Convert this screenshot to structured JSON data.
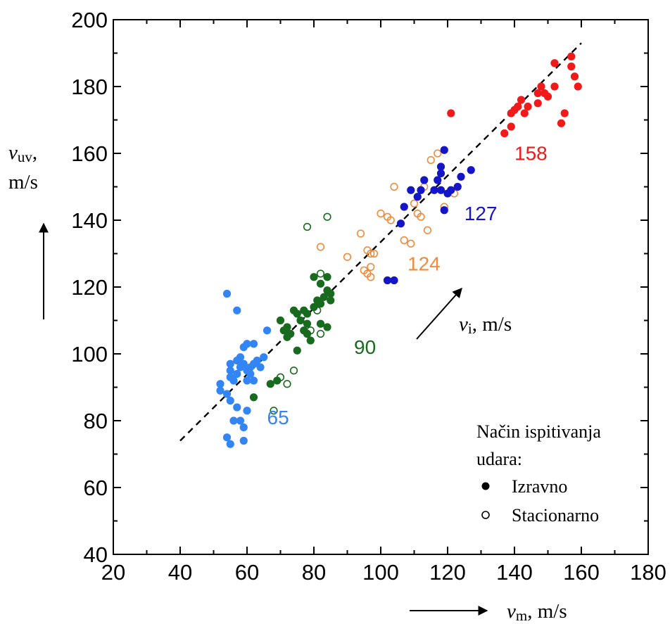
{
  "chart_data": {
    "type": "scatter",
    "xlim": [
      20,
      180
    ],
    "ylim": [
      40,
      200
    ],
    "x_ticks": [
      "20",
      "40",
      "60",
      "80",
      "100",
      "120",
      "140",
      "160",
      "180"
    ],
    "y_ticks": [
      "40",
      "60",
      "80",
      "100",
      "120",
      "140",
      "160",
      "180",
      "200"
    ],
    "xlabel": {
      "symbol": "v",
      "sub": "m",
      "unit": ", m/s"
    },
    "ylabel": {
      "symbol": "v",
      "sub": "uv",
      "line1_tail": ",",
      "line2": "m/s"
    },
    "diag_label": {
      "symbol": "v",
      "sub": "i",
      "unit": ", m/s"
    },
    "trend_line": {
      "from": [
        40,
        74
      ],
      "to": [
        160,
        193
      ],
      "style": "dashed"
    },
    "legend": {
      "title_line1": "Način ispitivanja",
      "title_line2": "udara:",
      "items": [
        {
          "label": "Izravno",
          "marker": "filled"
        },
        {
          "label": "Stacionarno",
          "marker": "open"
        }
      ],
      "placement": "bottom-right"
    },
    "group_labels": [
      {
        "text": "65",
        "color": "#3385f5",
        "x": 66,
        "y": 79
      },
      {
        "text": "90",
        "color": "#186b1e",
        "x": 92,
        "y": 100
      },
      {
        "text": "124",
        "color": "#f08a3c",
        "x": 108,
        "y": 125
      },
      {
        "text": "127",
        "color": "#1515c8",
        "x": 125,
        "y": 140
      },
      {
        "text": "158",
        "color": "#f01a1a",
        "x": 140,
        "y": 158
      }
    ],
    "series": [
      {
        "name": "65",
        "color": "#3385f5",
        "marker": "filled",
        "points": [
          [
            54,
            118
          ],
          [
            57,
            113
          ],
          [
            52,
            91
          ],
          [
            52,
            89
          ],
          [
            54,
            88
          ],
          [
            55,
            97
          ],
          [
            55,
            95
          ],
          [
            55,
            93
          ],
          [
            56,
            92
          ],
          [
            57,
            98
          ],
          [
            58,
            96
          ],
          [
            57,
            94
          ],
          [
            58,
            99
          ],
          [
            59,
            102
          ],
          [
            60,
            103
          ],
          [
            59,
            97
          ],
          [
            60,
            95
          ],
          [
            61,
            96
          ],
          [
            60,
            92
          ],
          [
            61,
            94
          ],
          [
            62,
            97
          ],
          [
            62,
            92
          ],
          [
            63,
            98
          ],
          [
            62,
            103
          ],
          [
            64,
            96
          ],
          [
            65,
            99
          ],
          [
            66,
            107
          ],
          [
            55,
            86
          ],
          [
            57,
            84
          ],
          [
            56,
            80
          ],
          [
            58,
            80
          ],
          [
            60,
            83
          ],
          [
            59,
            78
          ],
          [
            54,
            75
          ],
          [
            55,
            73
          ],
          [
            59,
            74
          ]
        ]
      },
      {
        "name": "90",
        "color": "#186b1e",
        "marker": "filled",
        "points": [
          [
            62,
            87
          ],
          [
            67,
            91
          ],
          [
            69,
            92
          ],
          [
            70,
            110
          ],
          [
            71,
            107
          ],
          [
            72,
            105
          ],
          [
            73,
            106
          ],
          [
            72,
            108
          ],
          [
            74,
            113
          ],
          [
            75,
            112
          ],
          [
            76,
            110
          ],
          [
            77,
            113
          ],
          [
            78,
            109
          ],
          [
            77,
            107
          ],
          [
            78,
            112
          ],
          [
            80,
            114
          ],
          [
            81,
            116
          ],
          [
            82,
            115
          ],
          [
            83,
            117
          ],
          [
            84,
            119
          ],
          [
            85,
            118
          ],
          [
            85,
            116
          ],
          [
            84,
            123
          ],
          [
            80,
            123
          ],
          [
            82,
            121
          ],
          [
            75,
            101
          ],
          [
            79,
            104
          ],
          [
            84,
            108
          ],
          [
            82,
            109
          ],
          [
            78,
            106
          ]
        ]
      },
      {
        "name": "90",
        "color": "#186b1e",
        "marker": "open",
        "points": [
          [
            78,
            138
          ],
          [
            84,
            141
          ],
          [
            82,
            124
          ],
          [
            81,
            113
          ],
          [
            79,
            107
          ],
          [
            78,
            106
          ],
          [
            82,
            106
          ],
          [
            74,
            95
          ],
          [
            70,
            93
          ],
          [
            72,
            91
          ],
          [
            68,
            83
          ]
        ]
      },
      {
        "name": "124",
        "color": "#f08a3c",
        "marker": "open",
        "points": [
          [
            82,
            132
          ],
          [
            90,
            129
          ],
          [
            94,
            136
          ],
          [
            96,
            131
          ],
          [
            97,
            130
          ],
          [
            98,
            130
          ],
          [
            95,
            125
          ],
          [
            96,
            124
          ],
          [
            97,
            126
          ],
          [
            97,
            123
          ],
          [
            100,
            142
          ],
          [
            102,
            141
          ],
          [
            103,
            140
          ],
          [
            104,
            150
          ],
          [
            107,
            134
          ],
          [
            109,
            133
          ],
          [
            110,
            145
          ],
          [
            111,
            142
          ],
          [
            112,
            141
          ],
          [
            113,
            150
          ],
          [
            114,
            137
          ],
          [
            115,
            158
          ],
          [
            117,
            160
          ],
          [
            119,
            144
          ],
          [
            122,
            148
          ]
        ]
      },
      {
        "name": "127",
        "color": "#1515c8",
        "marker": "filled",
        "points": [
          [
            102,
            122
          ],
          [
            104,
            122
          ],
          [
            106,
            139
          ],
          [
            107,
            144
          ],
          [
            109,
            149
          ],
          [
            111,
            147
          ],
          [
            112,
            149
          ],
          [
            113,
            152
          ],
          [
            116,
            149
          ],
          [
            117,
            152
          ],
          [
            118,
            154
          ],
          [
            118,
            156
          ],
          [
            119,
            161
          ],
          [
            118,
            149
          ],
          [
            120,
            148
          ],
          [
            121,
            149
          ],
          [
            123,
            150
          ],
          [
            124,
            153
          ],
          [
            127,
            155
          ],
          [
            119,
            143
          ]
        ]
      },
      {
        "name": "158",
        "color": "#f01a1a",
        "marker": "filled",
        "points": [
          [
            121,
            172
          ],
          [
            137,
            166
          ],
          [
            139,
            168
          ],
          [
            139,
            172
          ],
          [
            140,
            173
          ],
          [
            141,
            174
          ],
          [
            142,
            176
          ],
          [
            143,
            172
          ],
          [
            144,
            174
          ],
          [
            147,
            175
          ],
          [
            147,
            178
          ],
          [
            148,
            180
          ],
          [
            149,
            178
          ],
          [
            150,
            177
          ],
          [
            152,
            180
          ],
          [
            152,
            187
          ],
          [
            155,
            172
          ],
          [
            154,
            169
          ],
          [
            157,
            189
          ],
          [
            158,
            183
          ],
          [
            159,
            180
          ],
          [
            157,
            186
          ]
        ]
      }
    ]
  }
}
